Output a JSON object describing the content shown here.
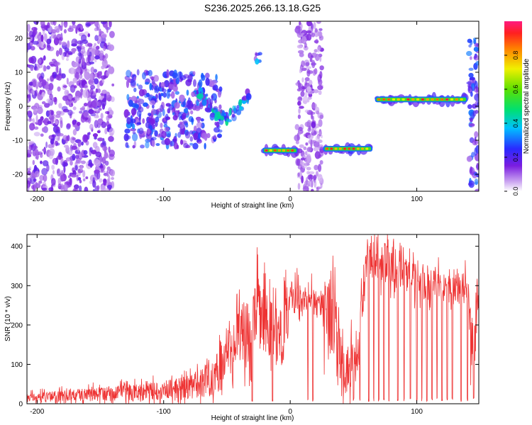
{
  "title": "S236.2025.266.13.18.G25",
  "chart_data": [
    {
      "type": "heatmap",
      "name": "spectrogram",
      "xlabel": "Height of straight line (km)",
      "ylabel": "Frequency (Hz)",
      "xlim": [
        -208,
        149
      ],
      "ylim": [
        -25,
        25
      ],
      "xticks": [
        -200,
        -100,
        0,
        100
      ],
      "yticks": [
        -20,
        -10,
        0,
        10,
        20
      ],
      "colorbar": {
        "label": "Normalized spectral amplitude",
        "range": [
          0,
          1
        ],
        "ticks": [
          0.0,
          0.2,
          0.4,
          0.6,
          0.8
        ],
        "tick_labels": [
          "0.0",
          "0.2",
          "0.4",
          "0.6",
          "0.8"
        ]
      },
      "features": [
        {
          "label": "diffuse noise",
          "x_range": [
            -208,
            -140
          ],
          "freq_range": [
            -25,
            25
          ],
          "amplitude": 0.12
        },
        {
          "label": "broad cluster",
          "x_range": [
            -130,
            -55
          ],
          "freq_range": [
            -12,
            10
          ],
          "amplitude": 0.2
        },
        {
          "label": "descending trace",
          "x_range": [
            -72,
            -32
          ],
          "freq_range": [
            -6,
            4
          ],
          "amplitude": 0.3
        },
        {
          "label": "high tone",
          "x_range": [
            -32,
            -23
          ],
          "freq_range": [
            13,
            16
          ],
          "amplitude": 0.3
        },
        {
          "label": "tone band 1",
          "x_range": [
            -22,
            6
          ],
          "freq": -13,
          "amplitude": 0.85
        },
        {
          "label": "noise column",
          "x_range": [
            5,
            25
          ],
          "freq_range": [
            -25,
            25
          ],
          "amplitude": 0.1
        },
        {
          "label": "tone band 2",
          "x_range": [
            26,
            65
          ],
          "freq": -12.5,
          "amplitude": 0.9
        },
        {
          "label": "tone band 3",
          "x_range": [
            67,
            140
          ],
          "freq": 2,
          "amplitude": 0.88
        },
        {
          "label": "edge column",
          "x_range": [
            141,
            149
          ],
          "freq_range": [
            -25,
            20
          ],
          "amplitude": 0.2
        }
      ]
    },
    {
      "type": "line",
      "name": "snr",
      "xlabel": "Height of straight line (km)",
      "ylabel": "SNR (10 * v/v)",
      "xlim": [
        -208,
        149
      ],
      "ylim": [
        0,
        430
      ],
      "xticks": [
        -200,
        -100,
        0,
        100
      ],
      "yticks": [
        0,
        100,
        200,
        300,
        400
      ],
      "series": [
        {
          "name": "SNR",
          "color": "#ee3333",
          "x": [
            -208,
            -180,
            -150,
            -120,
            -100,
            -80,
            -60,
            -45,
            -38,
            -30,
            -25,
            -20,
            -15,
            -10,
            -5,
            0,
            5,
            10,
            15,
            20,
            25,
            30,
            35,
            40,
            45,
            50,
            55,
            60,
            62,
            70,
            80,
            90,
            100,
            110,
            120,
            130,
            140,
            145,
            149
          ],
          "y": [
            15,
            20,
            25,
            30,
            35,
            40,
            70,
            140,
            190,
            180,
            250,
            200,
            190,
            170,
            210,
            270,
            280,
            250,
            300,
            250,
            260,
            230,
            220,
            100,
            60,
            120,
            180,
            370,
            390,
            370,
            350,
            330,
            310,
            300,
            300,
            300,
            290,
            120,
            300
          ]
        }
      ],
      "dropout_x": [
        -30,
        -14,
        14,
        18,
        50,
        55,
        62,
        66,
        70,
        74,
        78,
        85,
        90,
        95,
        100,
        104,
        108,
        112,
        116,
        120,
        124,
        128,
        135,
        140,
        145
      ]
    }
  ]
}
